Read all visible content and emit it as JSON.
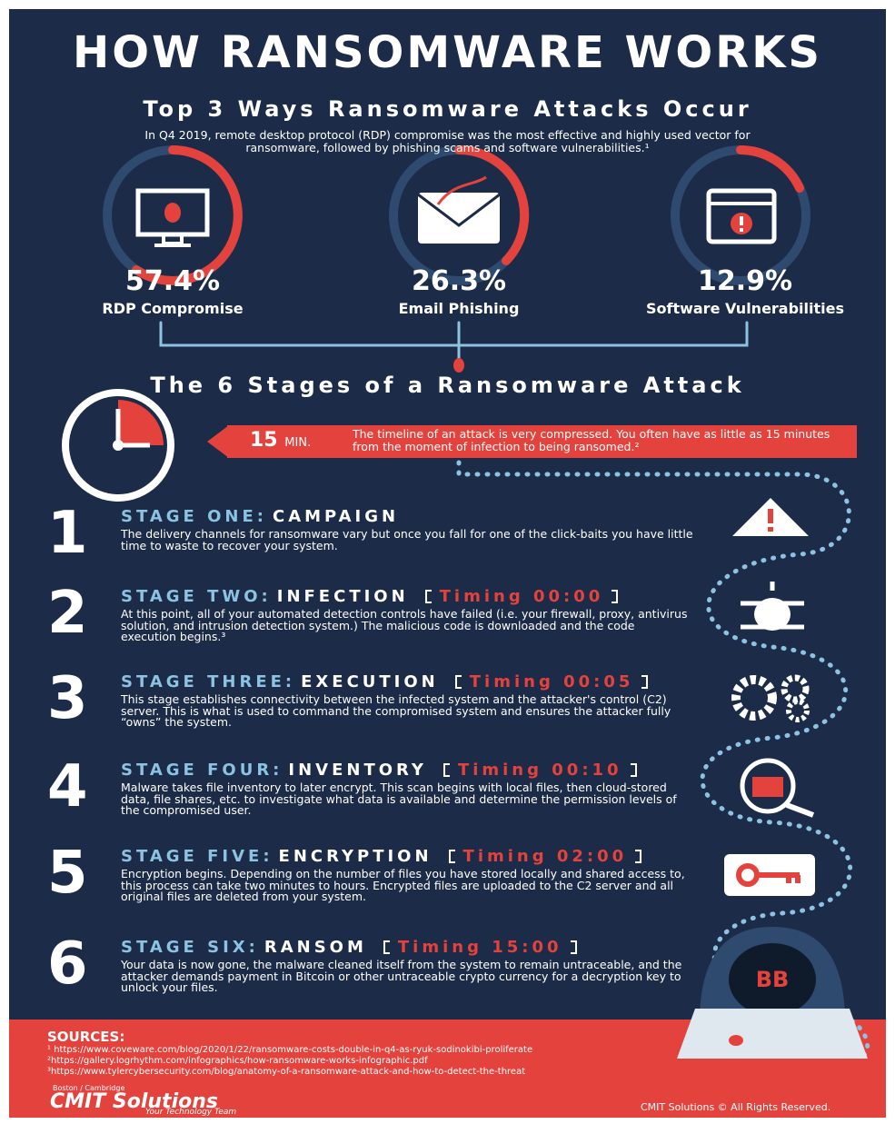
{
  "header": {
    "title": "HOW RANSOMWARE WORKS",
    "subtitle": "Top 3 Ways Ransomware Attacks Occur",
    "intro": "In Q4 2019, remote desktop protocol (RDP) compromise was the most effective and highly used vector for ransomware, followed by phishing scams and software vulnerabilities.¹"
  },
  "stats": [
    {
      "value": "57.4%",
      "label": "RDP Compromise"
    },
    {
      "value": "26.3%",
      "label": "Email Phishing"
    },
    {
      "value": "12.9%",
      "label": "Software Vulnerabilities"
    }
  ],
  "stages_title": "The 6 Stages of a Ransomware Attack",
  "timeline": {
    "minutes": "15",
    "unit": "MIN.",
    "text": "The timeline of an attack is very compressed. You often have as little as 15 minutes from the moment of infection to being ransomed.²"
  },
  "stages": [
    {
      "number": "1",
      "label": "STAGE ONE:",
      "name": "CAMPAIGN",
      "text": "The delivery channels for ransomware vary but once you fall for one of the click-baits you have little time to waste to recover your system."
    },
    {
      "number": "2",
      "label": "STAGE TWO:",
      "name": "INFECTION",
      "timing": "Timing 00:00",
      "text": "At this point, all of your automated detection controls have failed (i.e. your firewall, proxy, antivirus solution, and intrusion detection system.) The malicious code is downloaded and the code execution begins.³"
    },
    {
      "number": "3",
      "label": "STAGE THREE:",
      "name": "EXECUTION",
      "timing": "Timing 00:05",
      "text": "This stage establishes connectivity between the infected system and the attacker's control (C2) server. This is what is used to command the compromised system and ensures the attacker fully “owns” the system."
    },
    {
      "number": "4",
      "label": "STAGE FOUR:",
      "name": "INVENTORY",
      "timing": "Timing 00:10",
      "text": "Malware takes file inventory to later encrypt. This scan begins with local files, then cloud-stored data, file shares, etc. to investigate what data is available and determine the permission levels of the compromised user."
    },
    {
      "number": "5",
      "label": "STAGE FIVE:",
      "name": "ENCRYPTION",
      "timing": "Timing 02:00",
      "text": "Encryption begins. Depending on the number of files you have stored locally and shared access to, this process can take two minutes to hours. Encrypted files are uploaded to the C2 server and all original files are deleted from your system."
    },
    {
      "number": "6",
      "label": "STAGE SIX:",
      "name": "RANSOM",
      "timing": "Timing 15:00",
      "text": "Your data is now gone, the malware cleaned itself from the system to remain untraceable, and the attacker demands payment in Bitcoin or other untraceable crypto currency for a decryption key to unlock your files."
    }
  ],
  "hacker_text": "BB",
  "sources": {
    "title": "SOURCES:",
    "items": [
      "¹ https://www.coveware.com/blog/2020/1/22/ransomware-costs-double-in-q4-as-ryuk-sodinokibi-proliferate",
      "²https://gallery.logrhythm.com/infographics/how-ransomware-works-infographic.pdf",
      "³https://www.tylercybersecurity.com/blog/anatomy-of-a-ransomware-attack-and-how-to-detect-the-threat"
    ]
  },
  "footer": {
    "city": "Boston / Cambridge",
    "brand": "CMIT Solutions",
    "tagline": "Your Technology Team",
    "copyright": "CMIT Solutions © All Rights Reserved."
  }
}
